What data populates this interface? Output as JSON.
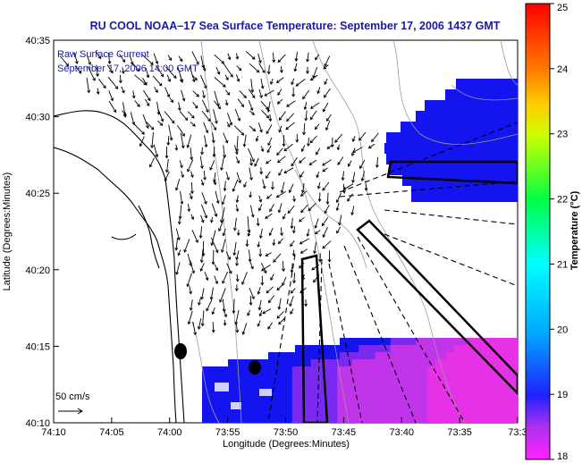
{
  "title": "RU COOL  NOAA–17  Sea Surface Temperature:  September 17, 2006 1437 GMT",
  "annotation": {
    "line1": "Raw Surface Current",
    "line2": "September 17, 2006 14:00 GMT"
  },
  "axes": {
    "xlabel": "Longitude (Degrees:Minutes)",
    "ylabel": "Latitude (Degrees:Minutes)",
    "x_ticks": [
      "74:10",
      "74:05",
      "74:00",
      "73:55",
      "73:50",
      "73:45",
      "73:40",
      "73:35",
      "73:3"
    ],
    "y_ticks": [
      "40:35",
      "40:30",
      "40:25",
      "40:20",
      "40:15",
      "40:10"
    ]
  },
  "scale_label": "50 cm/s",
  "colorbar": {
    "label": "Temperature (°C)",
    "min": 18,
    "max": 25,
    "ticks": [
      "25",
      "24",
      "23",
      "22",
      "21",
      "20",
      "19",
      "18"
    ]
  },
  "colors": {
    "title": "#1a1aa0",
    "sst_blue": "#1414f0",
    "sst_magenta": "#e632e6",
    "land_outline": "#000000",
    "bathymetry": "#9a9a9a"
  }
}
